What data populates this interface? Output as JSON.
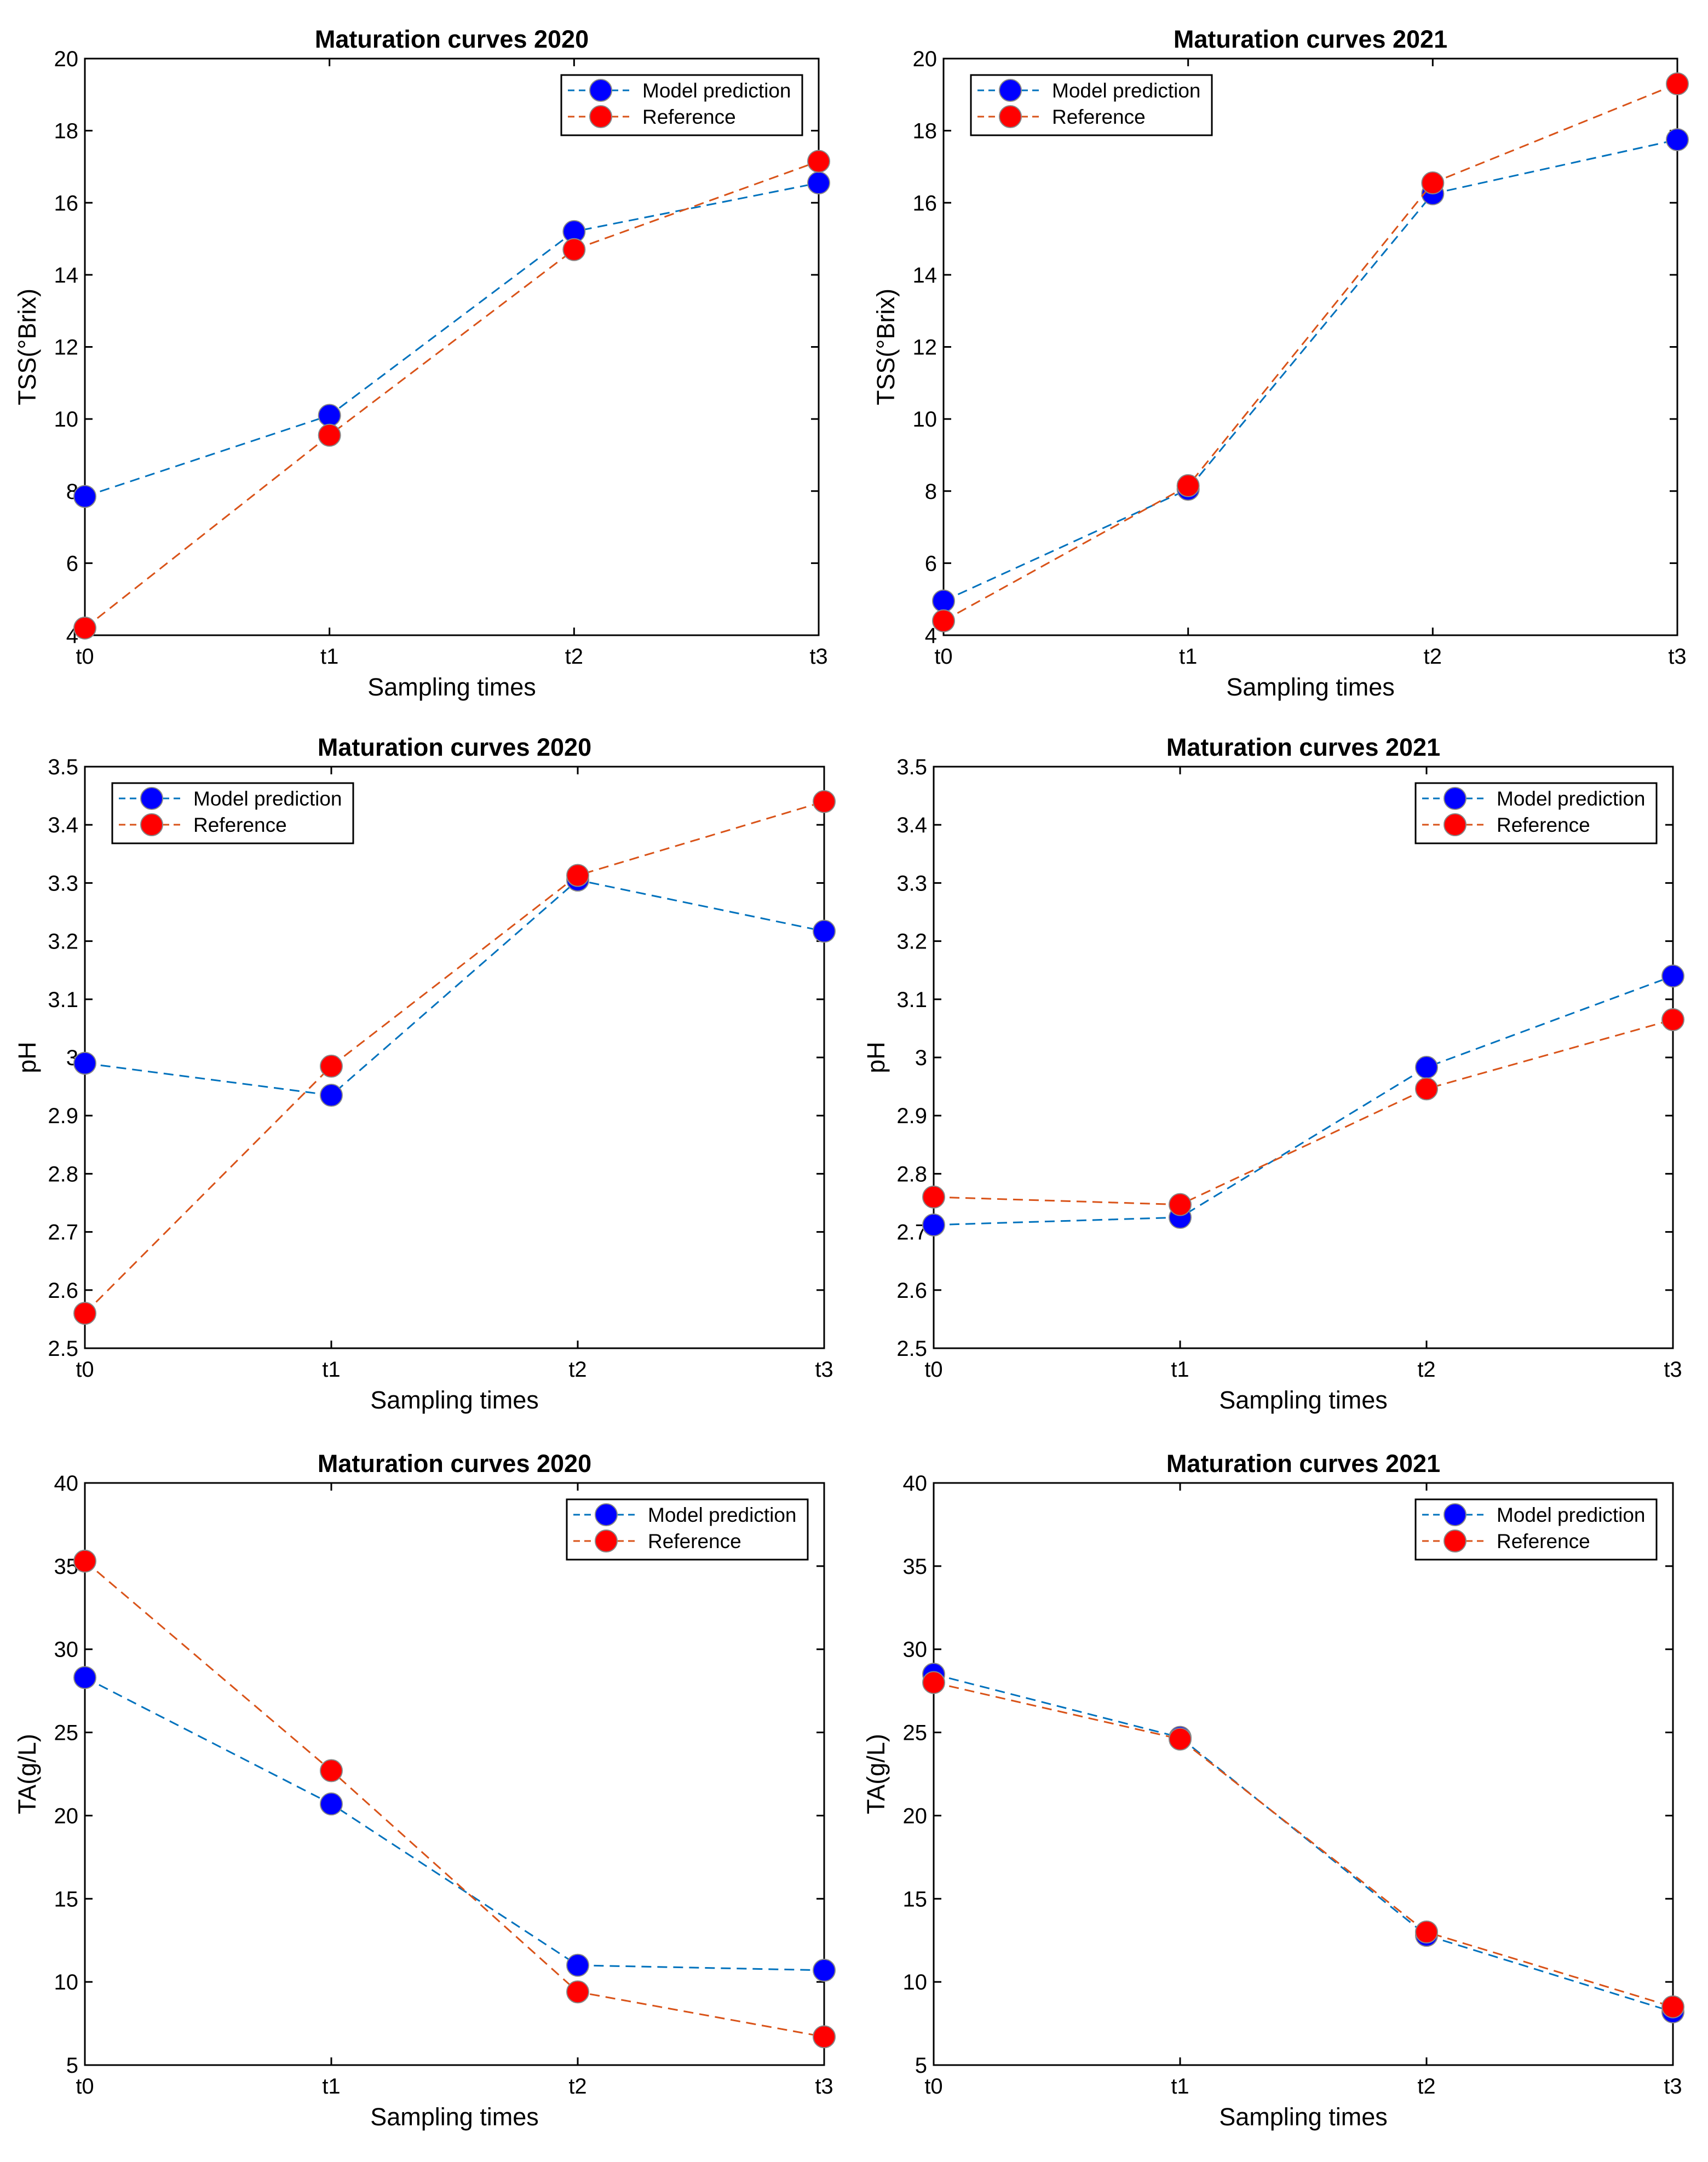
{
  "chart_data": [
    {
      "type": "line",
      "title": "Maturation curves 2020",
      "xlabel": "Sampling times",
      "ylabel": "TSS(°Brix)",
      "categories": [
        "t0",
        "t1",
        "t2",
        "t3"
      ],
      "ylim": [
        4,
        20
      ],
      "yticks": [
        "4",
        "6",
        "8",
        "10",
        "12",
        "14",
        "16",
        "18",
        "20"
      ],
      "legend_position": "top-right",
      "series": [
        {
          "name": "Model prediction",
          "values": [
            7.85,
            10.1,
            15.2,
            16.55
          ],
          "color": "#0000ff",
          "line_color": "#0072bd"
        },
        {
          "name": "Reference",
          "values": [
            4.2,
            9.55,
            14.7,
            17.15
          ],
          "color": "#ff0000",
          "line_color": "#d95319"
        }
      ]
    },
    {
      "type": "line",
      "title": "Maturation curves 2021",
      "xlabel": "Sampling times",
      "ylabel": "TSS(°Brix)",
      "categories": [
        "t0",
        "t1",
        "t2",
        "t3"
      ],
      "ylim": [
        4,
        20
      ],
      "yticks": [
        "4",
        "6",
        "8",
        "10",
        "12",
        "14",
        "16",
        "18",
        "20"
      ],
      "legend_position": "top-left",
      "series": [
        {
          "name": "Model prediction",
          "values": [
            4.95,
            8.05,
            16.25,
            17.75
          ],
          "color": "#0000ff",
          "line_color": "#0072bd"
        },
        {
          "name": "Reference",
          "values": [
            4.4,
            8.15,
            16.55,
            19.3
          ],
          "color": "#ff0000",
          "line_color": "#d95319"
        }
      ]
    },
    {
      "type": "line",
      "title": "Maturation curves 2020",
      "xlabel": "Sampling times",
      "ylabel": "pH",
      "categories": [
        "t0",
        "t1",
        "t2",
        "t3"
      ],
      "ylim": [
        2.5,
        3.5
      ],
      "yticks": [
        "2.5",
        "2.6",
        "2.7",
        "2.8",
        "2.9",
        "3",
        "3.1",
        "3.2",
        "3.3",
        "3.4",
        "3.5"
      ],
      "legend_position": "top-left",
      "series": [
        {
          "name": "Model prediction",
          "values": [
            2.99,
            2.935,
            3.305,
            3.217
          ],
          "color": "#0000ff",
          "line_color": "#0072bd"
        },
        {
          "name": "Reference",
          "values": [
            2.56,
            2.985,
            3.313,
            3.44
          ],
          "color": "#ff0000",
          "line_color": "#d95319"
        }
      ]
    },
    {
      "type": "line",
      "title": "Maturation curves 2021",
      "xlabel": "Sampling times",
      "ylabel": "pH",
      "categories": [
        "t0",
        "t1",
        "t2",
        "t3"
      ],
      "ylim": [
        2.5,
        3.5
      ],
      "yticks": [
        "2.5",
        "2.6",
        "2.7",
        "2.8",
        "2.9",
        "3",
        "3.1",
        "3.2",
        "3.3",
        "3.4",
        "3.5"
      ],
      "legend_position": "top-right",
      "series": [
        {
          "name": "Model prediction",
          "values": [
            2.712,
            2.725,
            2.983,
            3.14
          ],
          "color": "#0000ff",
          "line_color": "#0072bd"
        },
        {
          "name": "Reference",
          "values": [
            2.76,
            2.747,
            2.946,
            3.065
          ],
          "color": "#ff0000",
          "line_color": "#d95319"
        }
      ]
    },
    {
      "type": "line",
      "title": "Maturation curves 2020",
      "xlabel": "Sampling times",
      "ylabel": "TA(g/L)",
      "categories": [
        "t0",
        "t1",
        "t2",
        "t3"
      ],
      "ylim": [
        5,
        40
      ],
      "yticks": [
        "5",
        "10",
        "15",
        "20",
        "25",
        "30",
        "35",
        "40"
      ],
      "legend_position": "top-right",
      "series": [
        {
          "name": "Model prediction",
          "values": [
            28.3,
            20.7,
            11.0,
            10.7
          ],
          "color": "#0000ff",
          "line_color": "#0072bd"
        },
        {
          "name": "Reference",
          "values": [
            35.3,
            22.7,
            9.4,
            6.7
          ],
          "color": "#ff0000",
          "line_color": "#d95319"
        }
      ]
    },
    {
      "type": "line",
      "title": "Maturation curves 2021",
      "xlabel": "Sampling times",
      "ylabel": "TA(g/L)",
      "categories": [
        "t0",
        "t1",
        "t2",
        "t3"
      ],
      "ylim": [
        5,
        40
      ],
      "yticks": [
        "5",
        "10",
        "15",
        "20",
        "25",
        "30",
        "35",
        "40"
      ],
      "legend_position": "top-right",
      "series": [
        {
          "name": "Model prediction",
          "values": [
            28.5,
            24.7,
            12.8,
            8.2
          ],
          "color": "#0000ff",
          "line_color": "#0072bd"
        },
        {
          "name": "Reference",
          "values": [
            28.0,
            24.6,
            13.0,
            8.5
          ],
          "color": "#ff0000",
          "line_color": "#d95319"
        }
      ]
    }
  ]
}
